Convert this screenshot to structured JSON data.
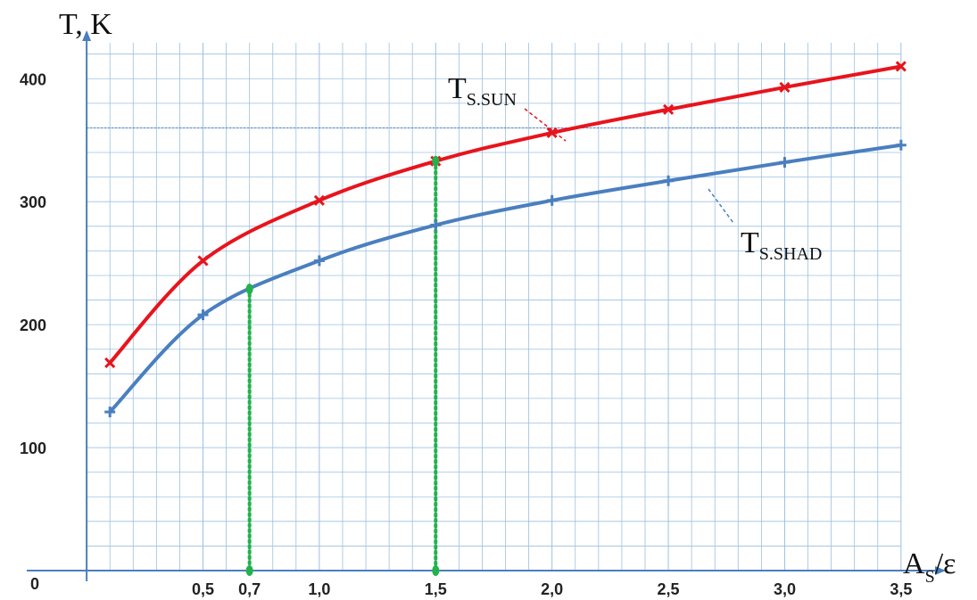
{
  "chart_data": {
    "type": "line",
    "xlabel": "A",
    "xlabel_sub": "S",
    "xlabel_rest": "/ε",
    "ylabel": "T, K",
    "origin_label": "0",
    "x_tick_labels": [
      {
        "x": 0.5,
        "label": "0,5"
      },
      {
        "x": 0.7,
        "label": "0,7"
      },
      {
        "x": 1.0,
        "label": "1,0"
      },
      {
        "x": 1.5,
        "label": "1,5"
      },
      {
        "x": 2.0,
        "label": "2,0"
      },
      {
        "x": 2.5,
        "label": "2,5"
      },
      {
        "x": 3.0,
        "label": "3,0"
      },
      {
        "x": 3.5,
        "label": "3,5"
      }
    ],
    "y_tick_labels": [
      {
        "y": 100,
        "label": "100"
      },
      {
        "y": 200,
        "label": "200"
      },
      {
        "y": 300,
        "label": "300"
      },
      {
        "y": 400,
        "label": "400"
      }
    ],
    "xlim": [
      -0.15,
      3.7
    ],
    "ylim": [
      0,
      435
    ],
    "grid": true,
    "reference_line_y": 360,
    "series": [
      {
        "name": "T",
        "name_sub": "S.SUN",
        "color": "#e8141c",
        "marker": "x",
        "x": [
          0.1,
          0.5,
          1.0,
          1.5,
          2.0,
          2.5,
          3.0,
          3.5
        ],
        "y": [
          169,
          252,
          301,
          333,
          356,
          375,
          393,
          410
        ]
      },
      {
        "name": "T",
        "name_sub": "S.SHAD",
        "color": "#4a7fbf",
        "marker": "+",
        "x": [
          0.1,
          0.5,
          1.0,
          1.5,
          2.0,
          2.5,
          3.0,
          3.5
        ],
        "y": [
          129,
          208,
          252,
          281,
          301,
          317,
          332,
          346
        ]
      }
    ],
    "highlights": [
      {
        "x": 0.7,
        "y": 229,
        "color": "#22b24c"
      },
      {
        "x": 1.5,
        "y": 333,
        "color": "#22b24c"
      }
    ]
  }
}
